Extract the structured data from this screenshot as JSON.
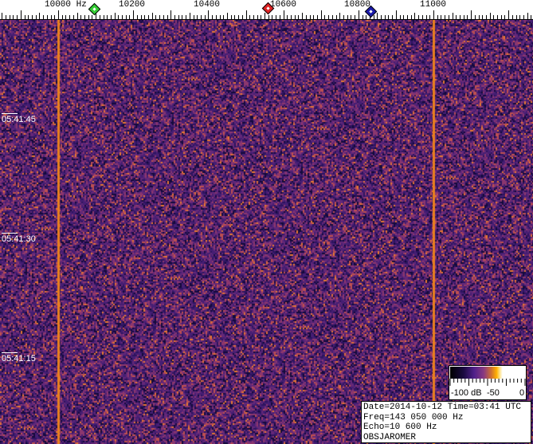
{
  "frequency_axis": {
    "unit": "Hz",
    "labels": [
      {
        "value": 10000,
        "text": "10000 Hz"
      },
      {
        "value": 10200,
        "text": "10200"
      },
      {
        "value": 10400,
        "text": "10400"
      },
      {
        "value": 10600,
        "text": "10600"
      },
      {
        "value": 10800,
        "text": "10800"
      },
      {
        "value": 11000,
        "text": "11000"
      }
    ],
    "markers": [
      {
        "name": "green-marker",
        "value": 10100,
        "color": "#33cc33"
      },
      {
        "name": "red-marker",
        "value": 10565,
        "color": "#dd2222"
      },
      {
        "name": "blue-marker",
        "value": 10840,
        "color": "#1a1aaa"
      }
    ]
  },
  "time_labels": [
    "05:41:45",
    "05:41:30",
    "05:41:15"
  ],
  "carrier_lines_hz": [
    10000,
    11000
  ],
  "colors": {
    "background": "#4a1f70",
    "carrier": "#e8801e"
  },
  "colorbar": {
    "labels": [
      "-100 dB",
      "-50",
      "0"
    ]
  },
  "info": {
    "line1": "Date=2014-10-12 Time=03:41 UTC",
    "line2": "Freq=143 050 000 Hz",
    "line3": "Echo=10 600 Hz",
    "line4": "OBSJAROMER"
  }
}
